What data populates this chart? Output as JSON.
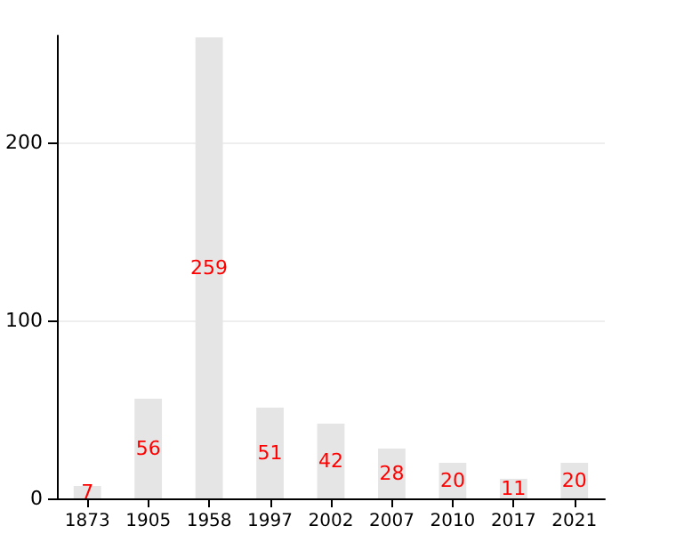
{
  "chart_data": {
    "type": "bar",
    "categories": [
      "1873",
      "1905",
      "1958",
      "1997",
      "2002",
      "2007",
      "2010",
      "2017",
      "2021"
    ],
    "series": [
      {
        "color": "#e5e5e5",
        "values": [
          7,
          56,
          259,
          51,
          42,
          28,
          20,
          11,
          20
        ]
      }
    ],
    "ylim": [
      0,
      260
    ],
    "yticks": [
      0,
      100,
      200
    ],
    "grid": "y",
    "data_labels": true
  }
}
